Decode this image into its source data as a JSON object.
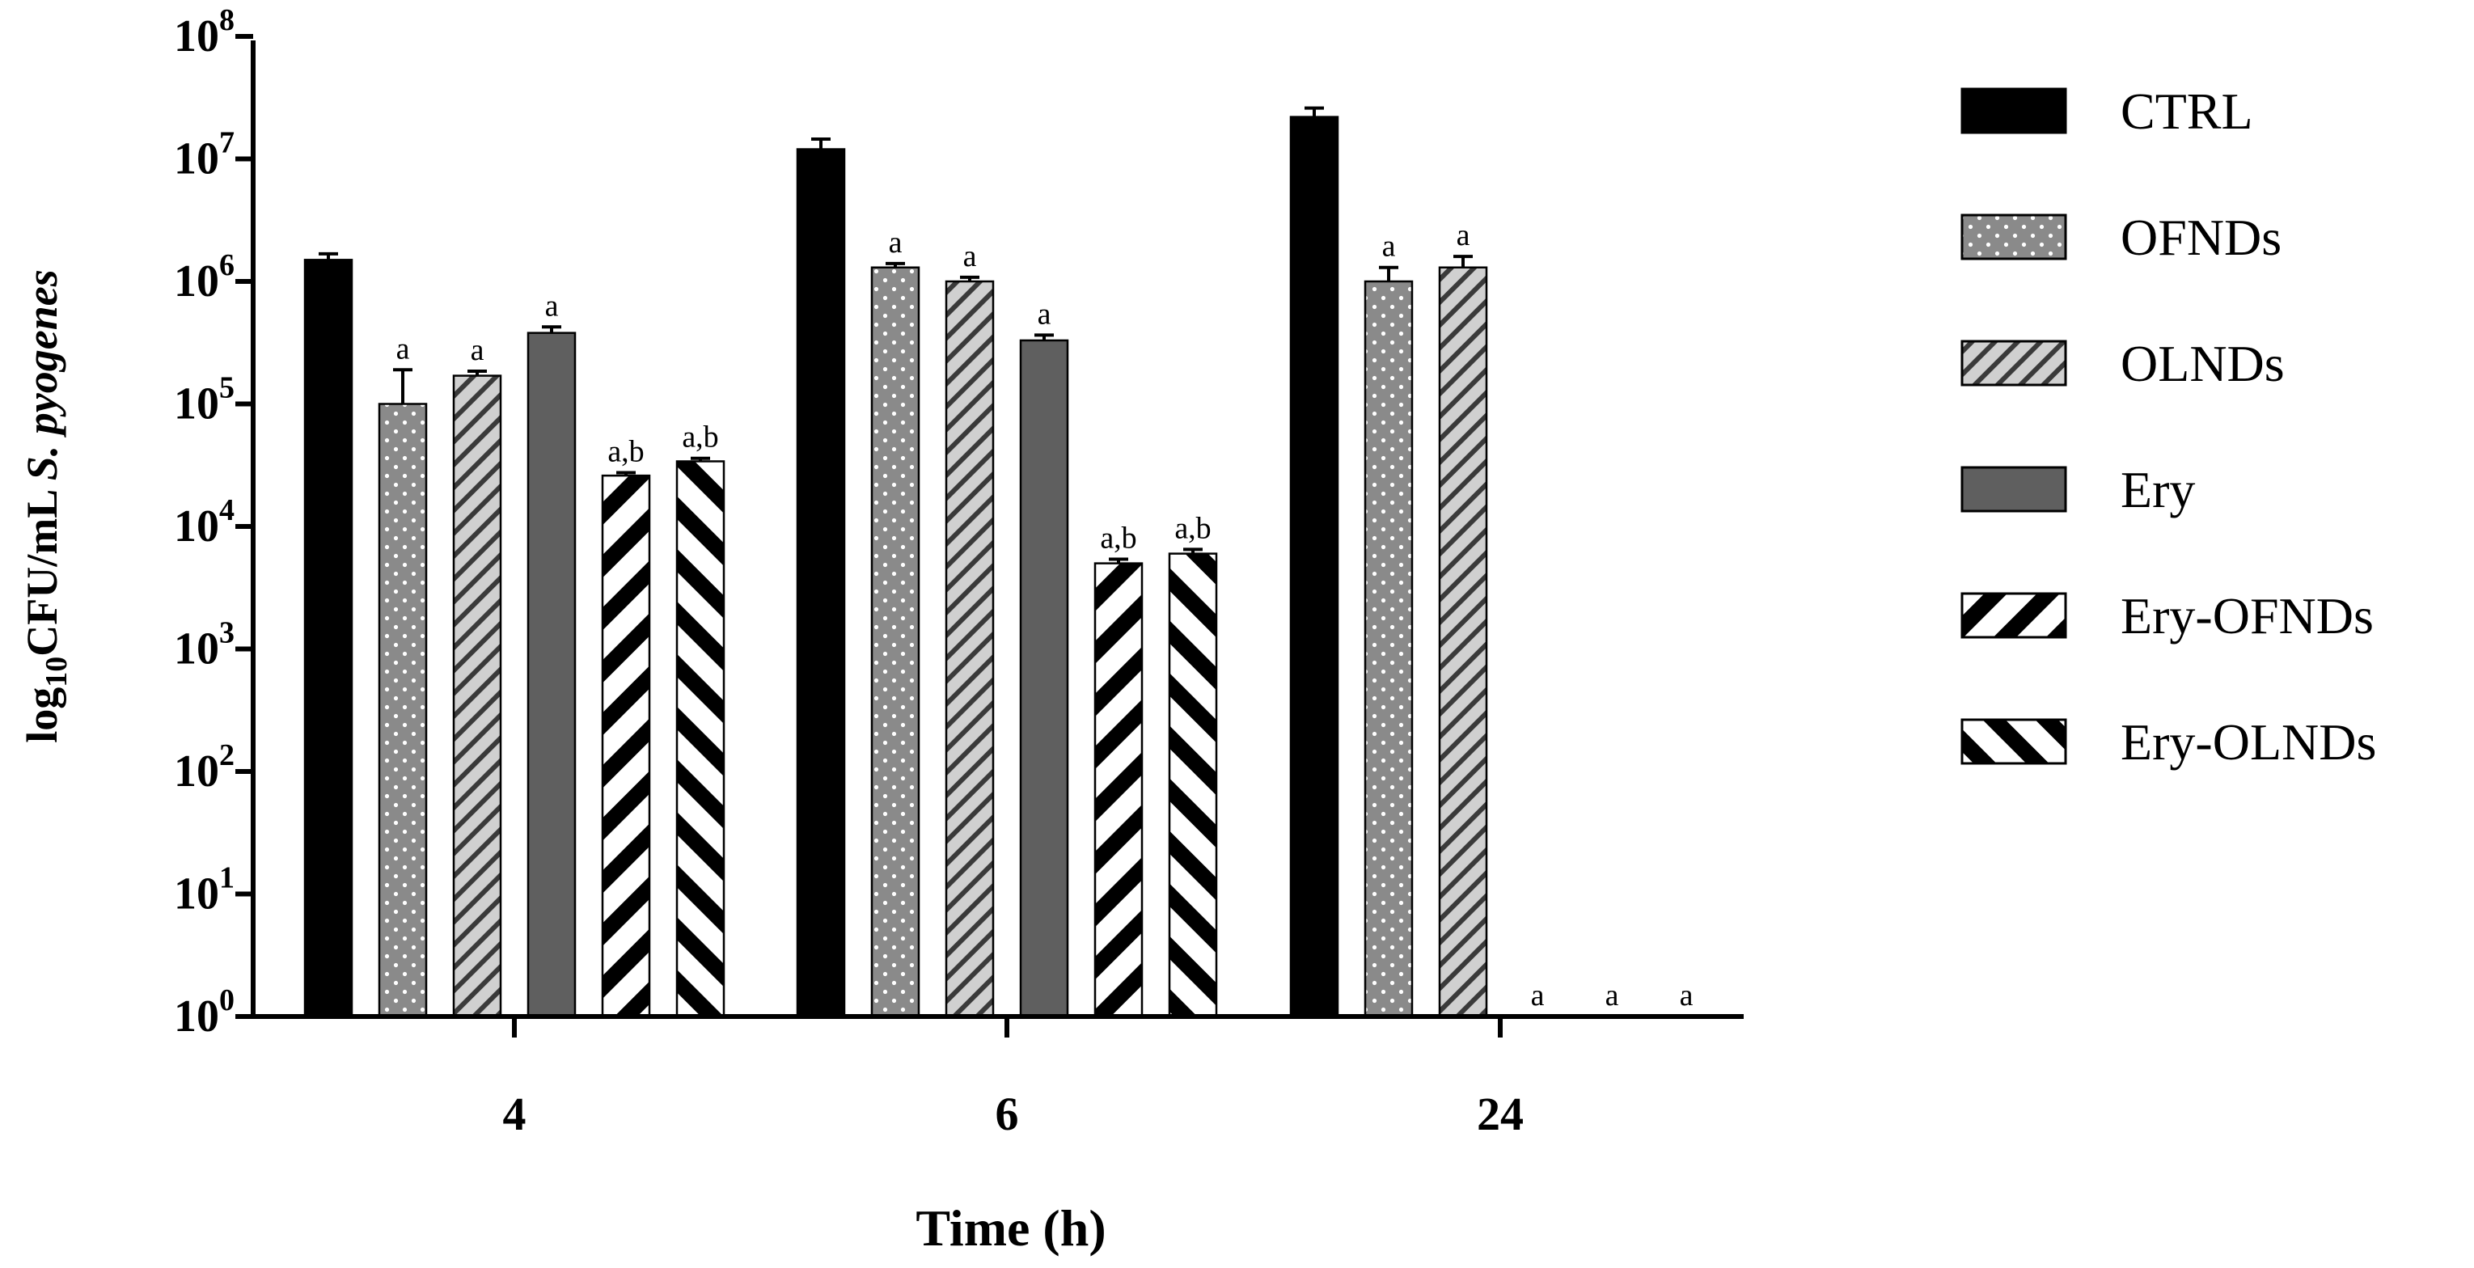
{
  "chart_data": {
    "type": "bar",
    "scale": "log",
    "title": "",
    "xlabel": "Time (h)",
    "ylabel": {
      "log_base": "log",
      "log_sub": "10",
      "unit": "CFU/mL",
      "species": "S. pyogenes"
    },
    "categories": [
      "4",
      "6",
      "24"
    ],
    "ylim": [
      1,
      100000000
    ],
    "y_ticks": [
      {
        "base": "10",
        "exp": "0"
      },
      {
        "base": "10",
        "exp": "1"
      },
      {
        "base": "10",
        "exp": "2"
      },
      {
        "base": "10",
        "exp": "3"
      },
      {
        "base": "10",
        "exp": "4"
      },
      {
        "base": "10",
        "exp": "5"
      },
      {
        "base": "10",
        "exp": "6"
      },
      {
        "base": "10",
        "exp": "7"
      },
      {
        "base": "10",
        "exp": "8"
      }
    ],
    "legend_position": "right",
    "series": [
      {
        "name": "CTRL",
        "pattern": "solid-black",
        "values": [
          1500000,
          12000000,
          22000000
        ],
        "errors": [
          180000,
          2500000,
          4000000
        ],
        "annotations": [
          "",
          "",
          ""
        ]
      },
      {
        "name": "OFNDs",
        "pattern": "dots-gray",
        "values": [
          100000,
          1300000,
          1000000
        ],
        "errors": [
          90000,
          100000,
          300000
        ],
        "annotations": [
          "a",
          "a",
          "a"
        ]
      },
      {
        "name": "OLNDs",
        "pattern": "thin-diagonal-light",
        "values": [
          170000,
          1000000,
          1300000
        ],
        "errors": [
          15000,
          80000,
          300000
        ],
        "annotations": [
          "a",
          "a",
          "a"
        ]
      },
      {
        "name": "Ery",
        "pattern": "solid-darkgray",
        "values": [
          380000,
          330000,
          1
        ],
        "errors": [
          45000,
          35000,
          0
        ],
        "annotations": [
          "a",
          "a",
          "a"
        ]
      },
      {
        "name": "Ery-OFNDs",
        "pattern": "thick-diagonal-down",
        "values": [
          26000,
          5000,
          1
        ],
        "errors": [
          1500,
          400,
          0
        ],
        "annotations": [
          "a,b",
          "a,b",
          "a"
        ]
      },
      {
        "name": "Ery-OLNDs",
        "pattern": "thick-diagonal-up",
        "values": [
          34000,
          6000,
          1
        ],
        "errors": [
          2000,
          500,
          0
        ],
        "annotations": [
          "a,b",
          "a,b",
          "a"
        ]
      }
    ]
  }
}
